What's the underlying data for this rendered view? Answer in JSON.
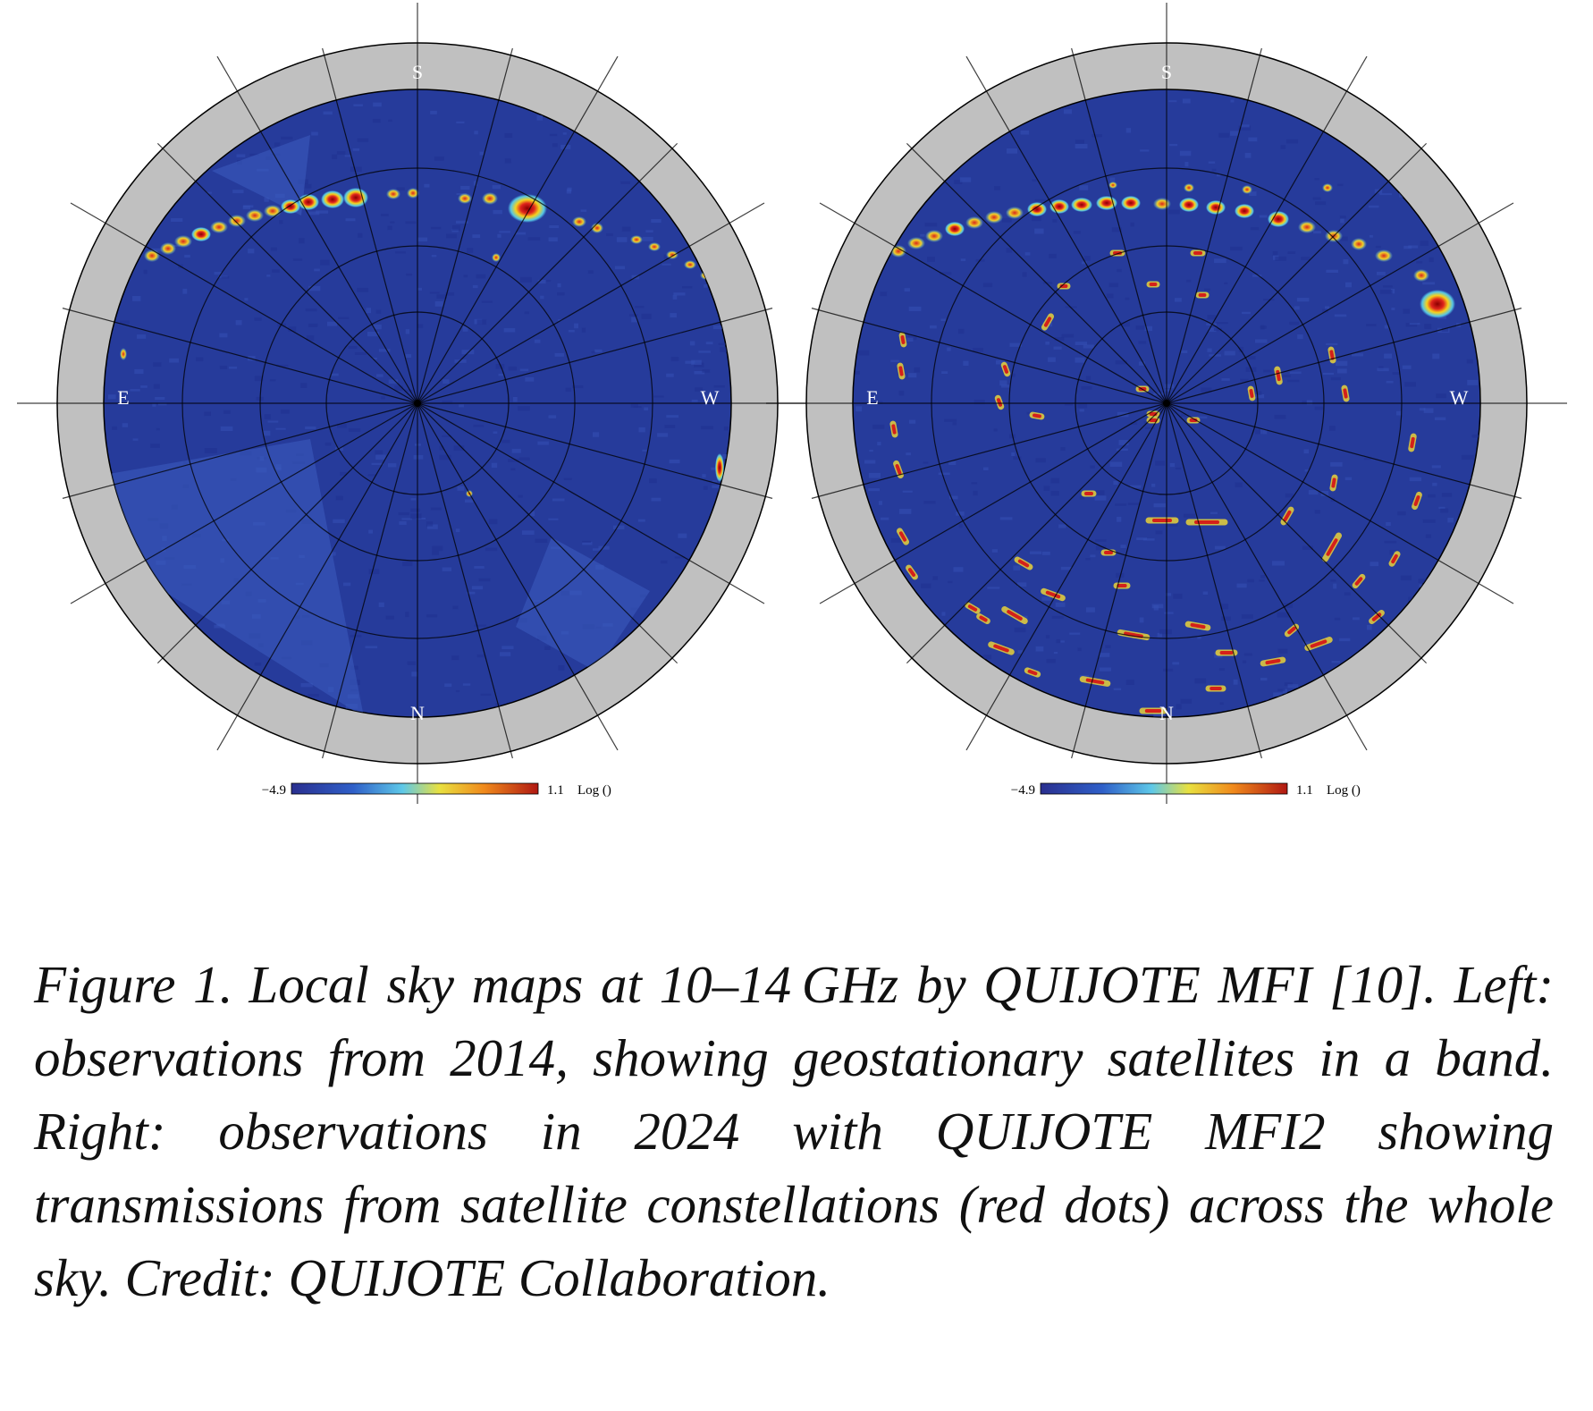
{
  "figure": {
    "maps": [
      {
        "id": "left",
        "labels": {
          "top": "S",
          "bottom": "N",
          "left": "E",
          "right": "W"
        },
        "colorbar": {
          "min": "−4.9",
          "max": "1.1",
          "unit": "Log ()"
        }
      },
      {
        "id": "right",
        "labels": {
          "top": "S",
          "bottom": "N",
          "left": "E",
          "right": "W"
        },
        "colorbar": {
          "min": "−4.9",
          "max": "1.1",
          "unit": "Log ()"
        }
      }
    ],
    "colors": {
      "background_sky": "#263b9b",
      "outer_ring": "#c0c0c0",
      "grid": "#000000",
      "hot": "#c81e14",
      "warm": "#f4d020",
      "cool": "#4fc3e8"
    }
  },
  "caption": {
    "number": "Figure 1.",
    "text": "Local sky maps at 10–14 GHz by QUIJOTE MFI [10]. Left: observations from 2014, showing geostationary satellites in a band. Right: observations in 2024 with QUIJOTE MFI2 showing transmissions from satellite constellations (red dots) across the whole sky. Credit: QUIJOTE Collaboration."
  }
}
